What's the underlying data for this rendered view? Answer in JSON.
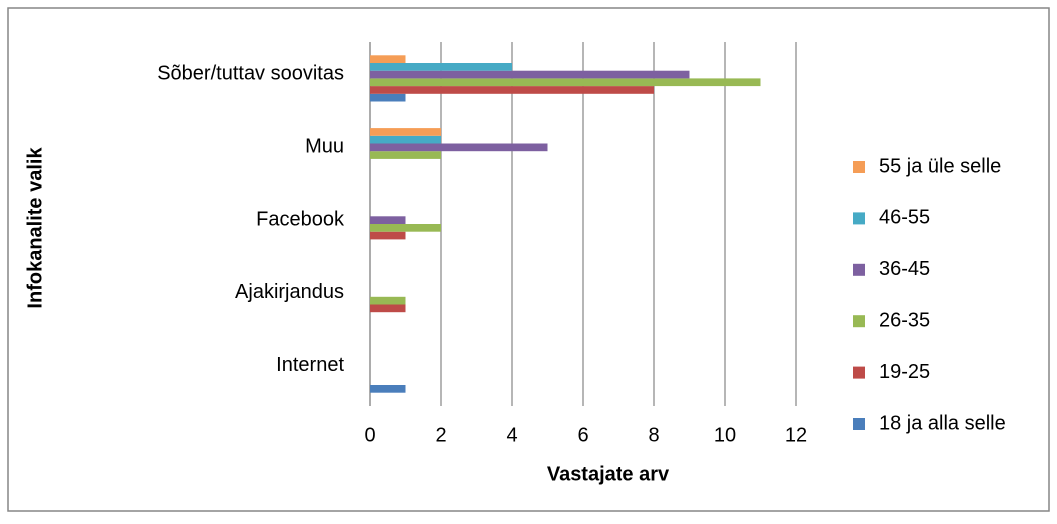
{
  "chart_data": {
    "type": "hbar",
    "xlabel": "Vastajate arv",
    "ylabel": "Infokanalite valik",
    "categories": [
      "Internet",
      "Ajakirjandus",
      "Facebook",
      "Muu",
      "Sõber/tuttav soovitas"
    ],
    "series": [
      {
        "name": "18 ja alla selle",
        "color": "#4a7ebb",
        "values": [
          1,
          0,
          0,
          0,
          1
        ]
      },
      {
        "name": "19-25",
        "color": "#be4b48",
        "values": [
          0,
          1,
          1,
          0,
          8
        ]
      },
      {
        "name": "26-35",
        "color": "#98b954",
        "values": [
          0,
          1,
          2,
          2,
          11
        ]
      },
      {
        "name": "36-45",
        "color": "#7d60a0",
        "values": [
          0,
          0,
          1,
          5,
          9
        ]
      },
      {
        "name": "46-55",
        "color": "#46aac5",
        "values": [
          0,
          0,
          0,
          2,
          4
        ]
      },
      {
        "name": "55 ja üle selle",
        "color": "#f59d56",
        "values": [
          0,
          0,
          0,
          2,
          1
        ]
      }
    ],
    "xlim": [
      0,
      12
    ],
    "xticks": [
      0,
      2,
      4,
      6,
      8,
      10,
      12
    ],
    "grid": true,
    "legend": "right"
  }
}
